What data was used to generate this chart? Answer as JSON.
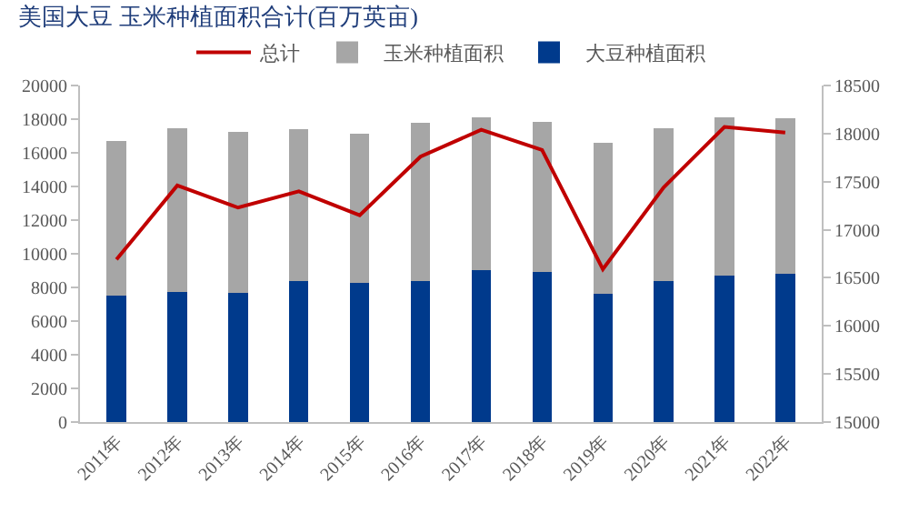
{
  "chart_data": {
    "type": "bar",
    "title": "美国大豆 玉米种植面积合计(百万英亩)",
    "stacked": true,
    "categories": [
      "2011年",
      "2012年",
      "2013年",
      "2014年",
      "2015年",
      "2016年",
      "2017年",
      "2018年",
      "2019年",
      "2020年",
      "2021年",
      "2022年"
    ],
    "series": [
      {
        "name": "大豆种植面积",
        "color": "#003a8c",
        "values": [
          7540,
          7750,
          7680,
          8390,
          8290,
          8360,
          9040,
          8930,
          7640,
          8360,
          8710,
          8820
        ]
      },
      {
        "name": "玉米种植面积",
        "color": "#a6a6a6",
        "values": [
          9180,
          9710,
          9570,
          9000,
          8850,
          9430,
          9070,
          8890,
          8970,
          9100,
          9400,
          9220
        ]
      },
      {
        "name": "总计",
        "color": "#c00000",
        "type": "line",
        "axis": "y2",
        "values": [
          16690,
          17460,
          17230,
          17400,
          17150,
          17760,
          18040,
          17830,
          16590,
          17440,
          18070,
          18010
        ]
      }
    ],
    "ylim": [
      0,
      20000
    ],
    "yticks": [
      0,
      2000,
      4000,
      6000,
      8000,
      10000,
      12000,
      14000,
      16000,
      18000,
      20000
    ],
    "y2lim": [
      15000,
      18500
    ],
    "y2ticks": [
      15000,
      15500,
      16000,
      16500,
      17000,
      17500,
      18000,
      18500
    ],
    "legend": "top",
    "grid": false,
    "marker": "none",
    "line_style": "solid"
  }
}
